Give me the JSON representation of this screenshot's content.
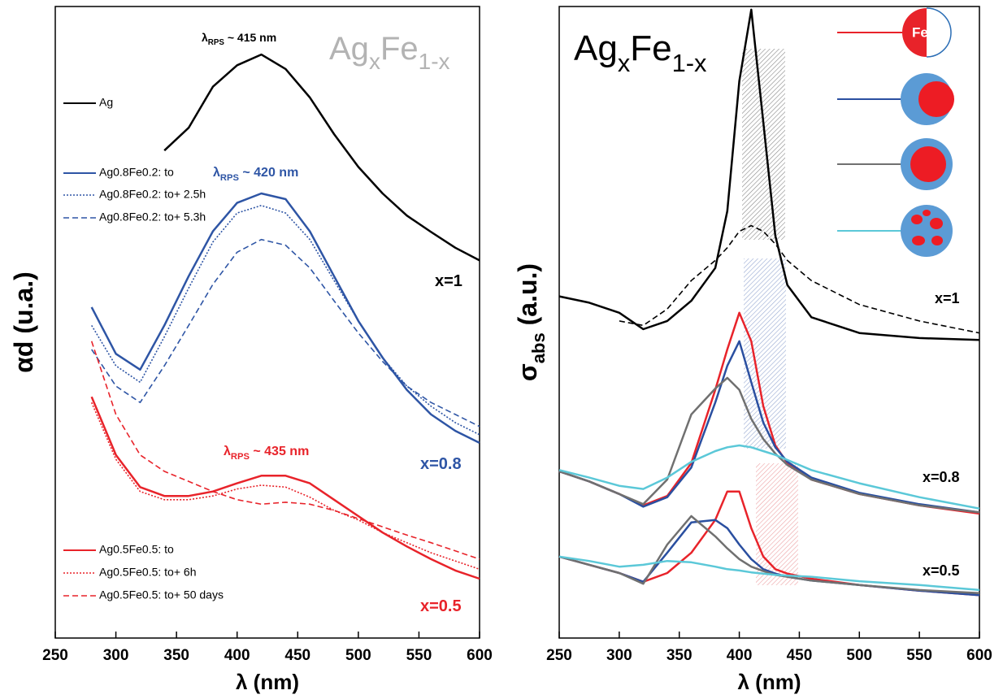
{
  "chart_data": [
    {
      "type": "line",
      "title": {
        "parts": [
          "Ag",
          "x",
          "Fe",
          "1-x"
        ]
      },
      "title_color": "#b3b3b3",
      "y_label": {
        "parts": [
          "αd (u.a.)"
        ]
      },
      "x_label": "λ (nm)",
      "x": [
        280,
        300,
        320,
        340,
        360,
        380,
        400,
        420,
        440,
        460,
        480,
        500,
        520,
        540,
        560,
        580,
        600
      ],
      "xlim": [
        250,
        600
      ],
      "xticks": [
        250,
        300,
        350,
        400,
        450,
        500,
        550,
        600
      ],
      "ylim": [
        0,
        100
      ],
      "series": [
        {
          "name": "Ag",
          "color": "#000000",
          "dash": "solid",
          "values": [
            null,
            null,
            null,
            77.2,
            80.8,
            87.3,
            90.7,
            92.4,
            90.1,
            85.6,
            79.8,
            74.6,
            70.4,
            66.9,
            64.3,
            61.8,
            59.8
          ]
        },
        {
          "name": "Ag0.8Fe0.2: to",
          "color": "#2e55a5",
          "dash": "solid",
          "values": [
            52.4,
            45.0,
            42.5,
            49.5,
            57.3,
            64.4,
            68.9,
            70.4,
            69.5,
            64.4,
            57.3,
            50.2,
            44.4,
            39.3,
            35.4,
            32.8,
            30.9
          ]
        },
        {
          "name": "Ag0.8Fe0.2: to+ 2.5h",
          "color": "#2e55a5",
          "dash": "dotted",
          "values": [
            49.5,
            43.1,
            40.5,
            47.7,
            55.4,
            62.7,
            67.3,
            68.5,
            67.3,
            63.1,
            56.6,
            50.2,
            44.4,
            39.9,
            36.7,
            34.1,
            32.2
          ]
        },
        {
          "name": "Ag0.8Fe0.2: to+ 5.3h",
          "color": "#2e55a5",
          "dash": "dashed",
          "values": [
            45.7,
            39.9,
            37.3,
            43.1,
            49.5,
            56.0,
            61.1,
            63.1,
            62.2,
            58.6,
            53.4,
            48.3,
            43.8,
            39.9,
            37.3,
            35.4,
            33.5
          ]
        },
        {
          "name": "Ag0.5Fe0.5: to",
          "color": "#e8232a",
          "dash": "solid",
          "values": [
            38.2,
            29.0,
            23.9,
            22.5,
            22.5,
            23.2,
            24.5,
            25.7,
            25.7,
            24.5,
            21.9,
            19.3,
            16.7,
            14.5,
            12.5,
            10.7,
            9.4
          ]
        },
        {
          "name": "Ag0.5Fe0.5: to+ 6h",
          "color": "#e8232a",
          "dash": "dotted",
          "values": [
            37.3,
            28.3,
            23.2,
            21.9,
            21.9,
            22.5,
            23.6,
            24.2,
            23.9,
            22.3,
            20.2,
            18.7,
            16.7,
            15.1,
            13.5,
            12.2,
            10.9
          ]
        },
        {
          "name": "Ag0.5Fe0.5: to+ 50 days",
          "color": "#e8232a",
          "dash": "dashed",
          "values": [
            47.0,
            35.4,
            29.0,
            26.4,
            24.8,
            23.2,
            21.9,
            21.2,
            21.5,
            21.2,
            20.2,
            18.9,
            17.6,
            16.3,
            15.1,
            13.8,
            12.5
          ]
        }
      ],
      "annotations": [
        {
          "parts": [
            "λ",
            "RPS",
            " ~ 415 nm"
          ],
          "color": "#000000"
        },
        {
          "parts": [
            "λ",
            "RPS",
            " ~ 420 nm"
          ],
          "color": "#2e55a5"
        },
        {
          "parts": [
            "λ",
            "RPS",
            " ~ 435 nm"
          ],
          "color": "#e8232a"
        },
        {
          "parts": [
            "x=1"
          ],
          "color": "#000000"
        },
        {
          "parts": [
            "x=0.8"
          ],
          "color": "#2e55a5"
        },
        {
          "parts": [
            "x=0.5"
          ],
          "color": "#e8232a"
        }
      ]
    },
    {
      "type": "line",
      "title": {
        "parts": [
          "Ag",
          "x",
          "Fe",
          "1-x"
        ]
      },
      "title_color": "#000000",
      "y_label": {
        "parts": [
          "σ",
          "abs",
          " (a.u.)"
        ]
      },
      "x_label": "λ (nm)",
      "x": [
        250,
        275,
        300,
        320,
        340,
        360,
        380,
        390,
        400,
        410,
        420,
        430,
        440,
        460,
        500,
        550,
        600
      ],
      "xlim": [
        250,
        600
      ],
      "xticks": [
        250,
        300,
        350,
        400,
        450,
        500,
        550,
        600
      ],
      "ylim": [
        0,
        100
      ],
      "legend_icon_text": "Fe",
      "series": [
        {
          "color": "#000000",
          "dash": "solid",
          "values": [
            54.1,
            53.1,
            51.5,
            48.9,
            50.2,
            53.4,
            58.6,
            67.6,
            88.2,
            99.5,
            81.7,
            63.7,
            55.9,
            50.8,
            48.3,
            47.5,
            47.2
          ]
        },
        {
          "color": "#000000",
          "dash": "dashed",
          "values": [
            null,
            null,
            50.2,
            49.5,
            52.1,
            56.6,
            59.8,
            61.8,
            64.4,
            65.3,
            64.4,
            62.4,
            59.8,
            56.6,
            52.8,
            50.2,
            48.3
          ]
        },
        {
          "color": "#e8232a",
          "dash": "solid",
          "values": [
            26.4,
            24.8,
            22.8,
            21.0,
            22.5,
            27.7,
            39.3,
            45.7,
            51.5,
            47.0,
            36.7,
            30.5,
            27.7,
            25.1,
            22.8,
            21.0,
            19.7
          ]
        },
        {
          "color": "#2a4fa0",
          "dash": "solid",
          "values": [
            26.4,
            24.8,
            22.8,
            20.8,
            22.3,
            27.0,
            37.3,
            43.1,
            47.0,
            40.5,
            34.1,
            30.2,
            27.9,
            25.4,
            23.0,
            21.2,
            19.9
          ]
        },
        {
          "color": "#707070",
          "dash": "solid",
          "values": [
            26.4,
            24.8,
            22.8,
            21.2,
            25.1,
            35.4,
            39.5,
            41.2,
            39.3,
            34.7,
            31.5,
            29.2,
            27.4,
            25.1,
            22.8,
            21.0,
            19.9
          ]
        },
        {
          "color": "#5bc8d8",
          "dash": "solid",
          "values": [
            26.6,
            25.4,
            24.1,
            23.6,
            25.4,
            27.9,
            29.6,
            30.2,
            30.5,
            30.2,
            29.6,
            29.0,
            28.2,
            26.6,
            24.5,
            22.3,
            20.5
          ]
        },
        {
          "color": "#e8232a",
          "dash": "solid",
          "values": [
            12.9,
            11.6,
            10.3,
            8.9,
            10.3,
            13.5,
            18.7,
            23.2,
            23.2,
            17.4,
            12.9,
            10.9,
            10.2,
            9.4,
            8.4,
            7.5,
            6.8
          ]
        },
        {
          "color": "#2a4fa0",
          "dash": "solid",
          "values": [
            12.9,
            11.6,
            10.3,
            8.9,
            13.5,
            18.3,
            18.7,
            17.4,
            14.8,
            12.5,
            10.9,
            10.2,
            9.7,
            9.1,
            8.4,
            7.5,
            6.8
          ]
        },
        {
          "color": "#707070",
          "dash": "solid",
          "values": [
            12.9,
            11.6,
            10.3,
            8.6,
            14.8,
            19.3,
            16.1,
            14.2,
            12.5,
            11.3,
            10.6,
            10.0,
            9.7,
            9.1,
            8.4,
            7.6,
            7.1
          ]
        },
        {
          "color": "#5bc8d8",
          "dash": "solid",
          "values": [
            12.9,
            12.2,
            11.3,
            11.6,
            12.2,
            12.0,
            11.3,
            10.9,
            10.7,
            10.4,
            10.2,
            10.0,
            9.9,
            9.7,
            9.0,
            8.4,
            7.6
          ]
        }
      ],
      "annotations": [
        {
          "parts": [
            "x=1"
          ],
          "color": "#000000"
        },
        {
          "parts": [
            "x=0.8"
          ],
          "color": "#000000"
        },
        {
          "parts": [
            "x=0.5"
          ],
          "color": "#000000"
        }
      ]
    }
  ]
}
